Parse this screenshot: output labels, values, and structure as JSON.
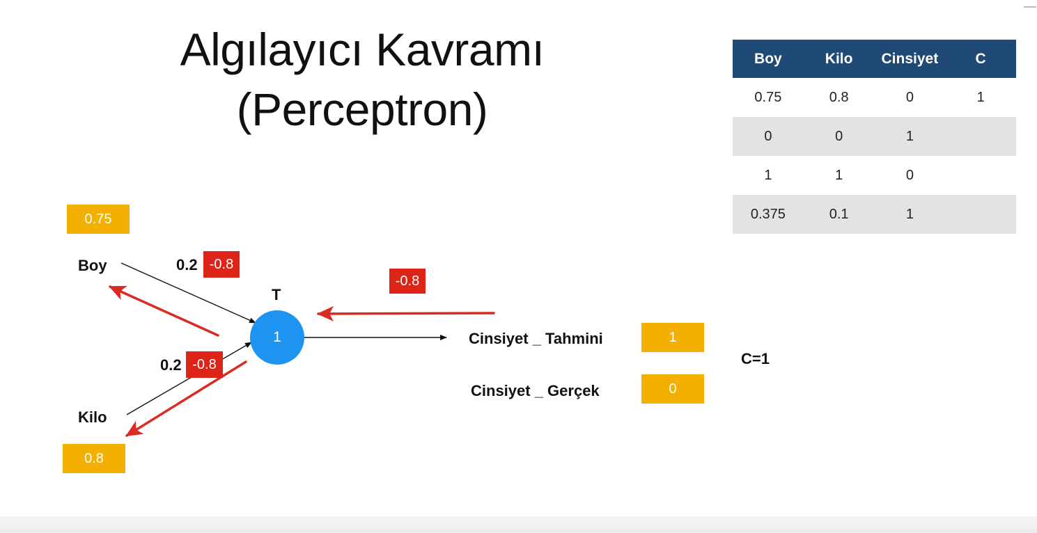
{
  "title": {
    "line1": "Algılayıcı Kavramı",
    "line2": "(Perceptron)"
  },
  "table": {
    "headers": [
      "Boy",
      "Kilo",
      "Cinsiyet",
      "C"
    ],
    "rows": [
      [
        "0.75",
        "0.8",
        "0",
        "1"
      ],
      [
        "0",
        "0",
        "1",
        ""
      ],
      [
        "1",
        "1",
        "0",
        ""
      ],
      [
        "0.375",
        "0.1",
        "1",
        ""
      ]
    ]
  },
  "inputs": {
    "boy": {
      "label": "Boy",
      "value": "0.75",
      "weight": "0.2",
      "new_weight": "-0.8"
    },
    "kilo": {
      "label": "Kilo",
      "value": "0.8",
      "weight": "0.2",
      "new_weight": "-0.8"
    }
  },
  "neuron": {
    "label": "T",
    "value": "1"
  },
  "error_value": "-0.8",
  "outputs": {
    "prediction": {
      "label": "Cinsiyet _ Tahmini",
      "value": "1"
    },
    "actual": {
      "label": "Cinsiyet _ Gerçek",
      "value": "0"
    }
  },
  "c_label": "C=1",
  "colors": {
    "table_header": "#1e4a75",
    "table_stripe": "#e3e3e3",
    "value_box": "#f4b000",
    "error_box": "#dc2418",
    "neuron": "#1d95f0",
    "backprop_arrow": "#d92b22"
  }
}
